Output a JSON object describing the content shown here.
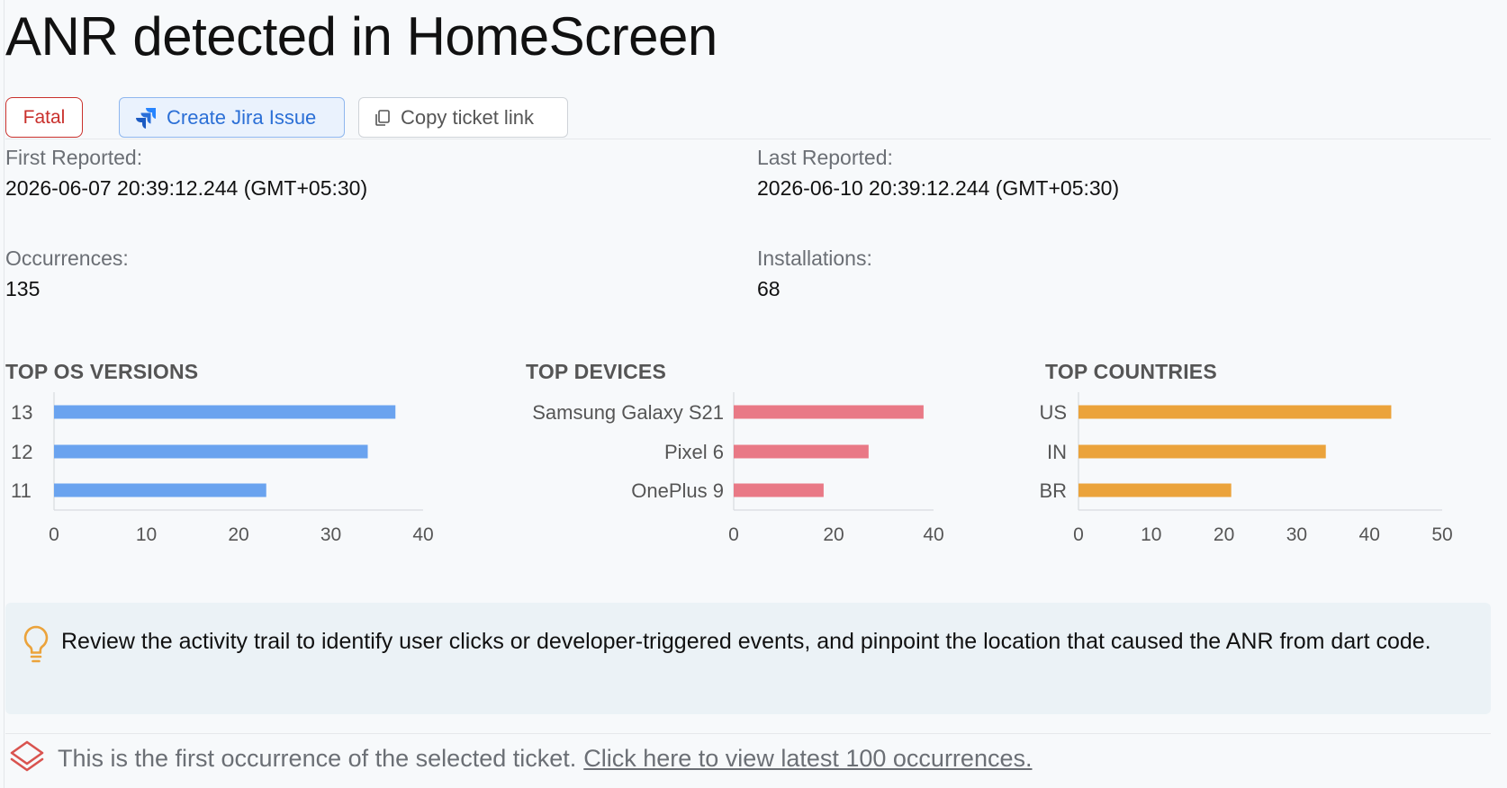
{
  "header": {
    "title": "ANR detected in HomeScreen"
  },
  "actions": {
    "severity_badge": "Fatal",
    "create_jira_label": "Create Jira Issue",
    "copy_link_label": "Copy ticket link"
  },
  "stats": {
    "first_reported_label": "First Reported:",
    "first_reported_value": "2026-06-07 20:39:12.244 (GMT+05:30)",
    "last_reported_label": "Last Reported:",
    "last_reported_value": "2026-06-10 20:39:12.244 (GMT+05:30)",
    "occurrences_label": "Occurrences:",
    "occurrences_value": "135",
    "installations_label": "Installations:",
    "installations_value": "68"
  },
  "colors": {
    "os_bar": "#6aa3ef",
    "device_bar": "#e97986",
    "country_bar": "#eba33b",
    "fatal": "#c9302c",
    "jira_accent": "#2b6fd6"
  },
  "chart_data": [
    {
      "type": "bar",
      "orientation": "horizontal",
      "title": "TOP OS VERSIONS",
      "categories": [
        "13",
        "12",
        "11"
      ],
      "values": [
        37,
        34,
        23
      ],
      "xlim": [
        0,
        40
      ],
      "xticks": [
        "0",
        "10",
        "20",
        "30",
        "40"
      ]
    },
    {
      "type": "bar",
      "orientation": "horizontal",
      "title": "TOP DEVICES",
      "categories": [
        "Samsung Galaxy S21",
        "Pixel 6",
        "OnePlus 9"
      ],
      "values": [
        38,
        27,
        18
      ],
      "xlim": [
        0,
        40
      ],
      "xticks": [
        "0",
        "20",
        "40"
      ]
    },
    {
      "type": "bar",
      "orientation": "horizontal",
      "title": "TOP COUNTRIES",
      "categories": [
        "US",
        "IN",
        "BR"
      ],
      "values": [
        43,
        34,
        21
      ],
      "xlim": [
        0,
        50
      ],
      "xticks": [
        "0",
        "10",
        "20",
        "30",
        "40",
        "50"
      ]
    }
  ],
  "tip": {
    "icon": "lightbulb-icon",
    "text": "Review the activity trail to identify user clicks or developer-triggered events, and pinpoint the location that caused the ANR from dart code."
  },
  "footer": {
    "icon": "layers-icon",
    "text": "This is the first occurrence of the selected ticket.",
    "link_text": "Click here to view latest 100 occurrences."
  }
}
